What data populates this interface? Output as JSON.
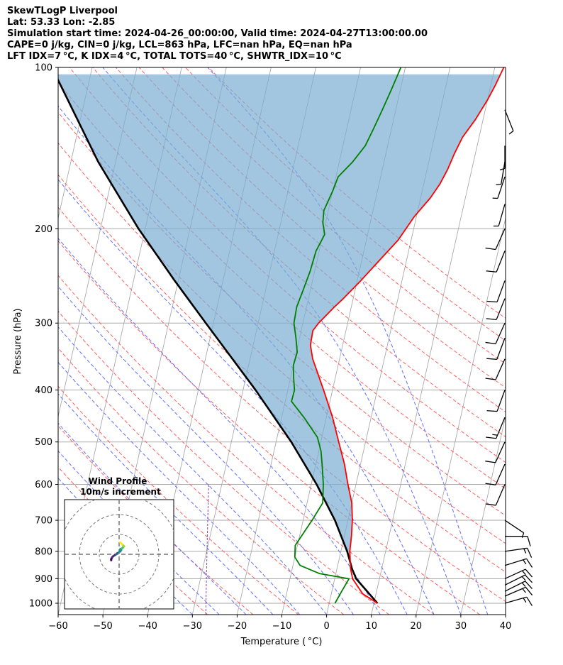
{
  "header": {
    "line1": "SkewTLogP Liverpool",
    "line2": "Lat: 53.33   Lon: -2.85",
    "line3": "Simulation start time: 2024-04-26_00:00:00, Valid time: 2024-04-27T13:00:00.00",
    "line4": "CAPE=0 j/kg, CIN=0 j/kg, LCL=863 hPa, LFC=nan hPa, EQ=nan hPa",
    "line5": "LFT IDX=7 °C, K IDX=4 °C, TOTAL TOTS=40 °C, SHWTR_IDX=10 °C"
  },
  "chart_data": {
    "type": "line",
    "xlabel": "Temperature ( °C)",
    "ylabel": "Pressure (hPa)",
    "xlim": [
      -60,
      40
    ],
    "ylim": [
      1050,
      100
    ],
    "y_scale": "log",
    "x_ticks": [
      -60,
      -50,
      -40,
      -30,
      -20,
      -10,
      0,
      10,
      20,
      30,
      40
    ],
    "x_tick_labels": [
      "−60",
      "−50",
      "−40",
      "−30",
      "−20",
      "−10",
      "0",
      "10",
      "20",
      "30",
      "40"
    ],
    "y_ticks": [
      1000,
      900,
      800,
      700,
      600,
      500,
      400,
      300,
      200,
      100
    ],
    "grid": true,
    "colors": {
      "temperature": "#ff0000",
      "dewpoint": "#008000",
      "parcel": "#000000",
      "cin_fill": "#7aaed2",
      "dry_adiabat": "#ff6060",
      "moist_adiabat": "#6070ff",
      "mixing_ratio": "#8844aa",
      "isotherm": "#aaaaaa"
    },
    "series": [
      {
        "name": "temperature",
        "points": [
          [
            1000,
            10.8
          ],
          [
            960,
            7.0
          ],
          [
            900,
            4.0
          ],
          [
            860,
            3.0
          ],
          [
            800,
            2.0
          ],
          [
            750,
            1.6
          ],
          [
            700,
            1.0
          ],
          [
            650,
            0.0
          ],
          [
            600,
            -1.8
          ],
          [
            550,
            -3.6
          ],
          [
            500,
            -6.0
          ],
          [
            450,
            -8.6
          ],
          [
            400,
            -12.0
          ],
          [
            350,
            -16.0
          ],
          [
            330,
            -17.2
          ],
          [
            310,
            -17.4
          ],
          [
            300,
            -16.5
          ],
          [
            280,
            -13.8
          ],
          [
            270,
            -12.2
          ],
          [
            250,
            -9.2
          ],
          [
            230,
            -6.2
          ],
          [
            210,
            -2.9
          ],
          [
            190,
            -0.5
          ],
          [
            175,
            2.2
          ],
          [
            165,
            3.6
          ],
          [
            155,
            4.6
          ],
          [
            145,
            5.3
          ],
          [
            135,
            6.3
          ],
          [
            125,
            8.3
          ],
          [
            115,
            10.0
          ],
          [
            108,
            11.0
          ],
          [
            100,
            12.0
          ]
        ]
      },
      {
        "name": "dewpoint",
        "points": [
          [
            1000,
            1.3
          ],
          [
            950,
            2.2
          ],
          [
            900,
            3.2
          ],
          [
            880,
            -3.7
          ],
          [
            850,
            -8.4
          ],
          [
            820,
            -10.0
          ],
          [
            780,
            -10.5
          ],
          [
            750,
            -9.6
          ],
          [
            700,
            -8.0
          ],
          [
            650,
            -6.5
          ],
          [
            600,
            -7.3
          ],
          [
            550,
            -8.6
          ],
          [
            520,
            -9.5
          ],
          [
            490,
            -11.0
          ],
          [
            450,
            -15.0
          ],
          [
            420,
            -18.6
          ],
          [
            400,
            -18.5
          ],
          [
            380,
            -19.3
          ],
          [
            360,
            -20.0
          ],
          [
            340,
            -19.8
          ],
          [
            320,
            -20.8
          ],
          [
            300,
            -22.0
          ],
          [
            280,
            -22.2
          ],
          [
            260,
            -21.6
          ],
          [
            240,
            -21.0
          ],
          [
            220,
            -20.7
          ],
          [
            205,
            -19.6
          ],
          [
            195,
            -20.6
          ],
          [
            185,
            -21.0
          ],
          [
            170,
            -20.0
          ],
          [
            160,
            -19.5
          ],
          [
            150,
            -17.0
          ],
          [
            140,
            -15.0
          ],
          [
            130,
            -14.0
          ],
          [
            120,
            -13.0
          ],
          [
            110,
            -12.0
          ],
          [
            100,
            -11.0
          ]
        ]
      },
      {
        "name": "parcel",
        "points": [
          [
            1000,
            10.8
          ],
          [
            900,
            4.8
          ],
          [
            863,
            3.4
          ],
          [
            800,
            1.4
          ],
          [
            700,
            -2.9
          ],
          [
            600,
            -8.8
          ],
          [
            500,
            -16.6
          ],
          [
            400,
            -27.2
          ],
          [
            300,
            -41.7
          ],
          [
            250,
            -50.8
          ],
          [
            200,
            -61.5
          ],
          [
            150,
            -73.9
          ],
          [
            100,
            -89.0
          ]
        ]
      }
    ],
    "wind_barbs": [
      {
        "p": 1000,
        "u": -14,
        "v": -4
      },
      {
        "p": 970,
        "u": -14,
        "v": -6
      },
      {
        "p": 950,
        "u": -14,
        "v": -7
      },
      {
        "p": 925,
        "u": -14,
        "v": -7
      },
      {
        "p": 900,
        "u": -13,
        "v": -6
      },
      {
        "p": 850,
        "u": -13,
        "v": -4
      },
      {
        "p": 800,
        "u": -14,
        "v": -2
      },
      {
        "p": 750,
        "u": -12,
        "v": 0
      },
      {
        "p": 700,
        "u": -6,
        "v": 4
      },
      {
        "p": 600,
        "u": 3,
        "v": 7
      },
      {
        "p": 550,
        "u": 4,
        "v": 9
      },
      {
        "p": 500,
        "u": 5,
        "v": 11
      },
      {
        "p": 450,
        "u": 5,
        "v": 12
      },
      {
        "p": 400,
        "u": 4,
        "v": 11
      },
      {
        "p": 350,
        "u": 4,
        "v": 9
      },
      {
        "p": 320,
        "u": 3,
        "v": 8
      },
      {
        "p": 300,
        "u": 4,
        "v": 9
      },
      {
        "p": 270,
        "u": 4,
        "v": 10
      },
      {
        "p": 250,
        "u": 4,
        "v": 11
      },
      {
        "p": 220,
        "u": 4,
        "v": 10
      },
      {
        "p": 200,
        "u": 4,
        "v": 9
      },
      {
        "p": 180,
        "u": 2,
        "v": 7
      },
      {
        "p": 160,
        "u": 2,
        "v": 6
      },
      {
        "p": 150,
        "u": 1,
        "v": 6
      },
      {
        "p": 140,
        "u": 0,
        "v": 5
      },
      {
        "p": 120,
        "u": -2,
        "v": 5
      }
    ]
  },
  "inset": {
    "title_line1": "Wind Profile",
    "title_line2": "10m/s increment",
    "hodograph": [
      [
        -4,
        -3
      ],
      [
        -4,
        -2.5
      ],
      [
        -3.5,
        -1.5
      ],
      [
        -3,
        -1
      ],
      [
        -1.5,
        0
      ],
      [
        -1,
        0.5
      ],
      [
        0,
        1
      ],
      [
        0.5,
        1.5
      ],
      [
        1,
        2
      ],
      [
        0.5,
        2.5
      ],
      [
        1.5,
        3
      ],
      [
        2,
        3.5
      ],
      [
        2.5,
        4
      ],
      [
        2,
        4.5
      ],
      [
        1.5,
        5
      ],
      [
        1,
        5.5
      ],
      [
        0.5,
        6
      ]
    ]
  }
}
